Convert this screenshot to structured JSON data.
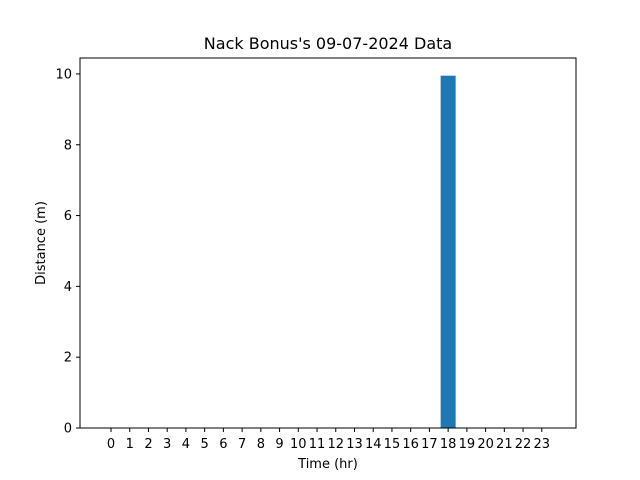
{
  "chart_data": {
    "type": "bar",
    "title": "Nack Bonus's 09-07-2024 Data",
    "xlabel": "Time (hr)",
    "ylabel": "Distance (m)",
    "categories": [
      "0",
      "1",
      "2",
      "3",
      "4",
      "5",
      "6",
      "7",
      "8",
      "9",
      "10",
      "11",
      "12",
      "13",
      "14",
      "15",
      "16",
      "17",
      "18",
      "19",
      "20",
      "21",
      "22",
      "23"
    ],
    "values": [
      0,
      0,
      0,
      0,
      0,
      0,
      0,
      0,
      0,
      0,
      0,
      0,
      0,
      0,
      0,
      0,
      0,
      0,
      9.95,
      0,
      0,
      0,
      0,
      0
    ],
    "y_ticks": [
      "0",
      "2",
      "4",
      "6",
      "8",
      "10"
    ],
    "ylim": [
      0,
      10.45
    ],
    "bar_color": "#1f77b4",
    "grid": false,
    "legend": "none"
  }
}
